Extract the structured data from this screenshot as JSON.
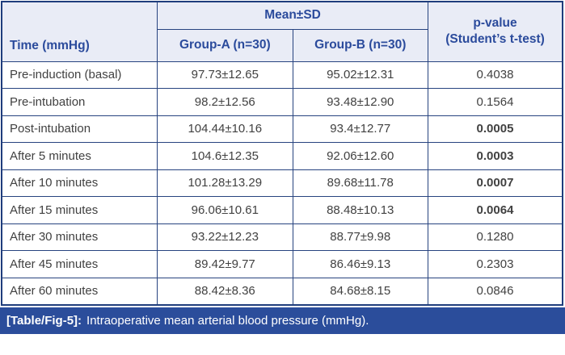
{
  "colors": {
    "table_border": "#1f3d7c",
    "header_bg": "#e9ecf6",
    "header_text": "#2b4b9c",
    "body_text": "#414141",
    "caption_bg": "#2b4d9b",
    "caption_text": "#ffffff"
  },
  "table": {
    "header": {
      "time": "Time (mmHg)",
      "mean_sd": "Mean±SD",
      "group_a": "Group-A (n=30)",
      "group_b": "Group-B (n=30)",
      "p_value": "p-value\n(Student’s t-test)"
    },
    "rows": [
      {
        "time": "Pre-induction (basal)",
        "group_a": "97.73±12.65",
        "group_b": "95.02±12.31",
        "p": "0.4038",
        "p_bold": false
      },
      {
        "time": "Pre-intubation",
        "group_a": "98.2±12.56",
        "group_b": "93.48±12.90",
        "p": "0.1564",
        "p_bold": false
      },
      {
        "time": "Post-intubation",
        "group_a": "104.44±10.16",
        "group_b": "93.4±12.77",
        "p": "0.0005",
        "p_bold": true
      },
      {
        "time": "After 5 minutes",
        "group_a": "104.6±12.35",
        "group_b": "92.06±12.60",
        "p": "0.0003",
        "p_bold": true
      },
      {
        "time": "After 10 minutes",
        "group_a": "101.28±13.29",
        "group_b": "89.68±11.78",
        "p": "0.0007",
        "p_bold": true
      },
      {
        "time": "After 15 minutes",
        "group_a": "96.06±10.61",
        "group_b": "88.48±10.13",
        "p": "0.0064",
        "p_bold": true
      },
      {
        "time": "After 30 minutes",
        "group_a": "93.22±12.23",
        "group_b": "88.77±9.98",
        "p": "0.1280",
        "p_bold": false
      },
      {
        "time": "After 45 minutes",
        "group_a": "89.42±9.77",
        "group_b": "86.46±9.13",
        "p": "0.2303",
        "p_bold": false
      },
      {
        "time": "After 60 minutes",
        "group_a": "88.42±8.36",
        "group_b": "84.68±8.15",
        "p": "0.0846",
        "p_bold": false
      }
    ]
  },
  "caption": {
    "label": "[Table/Fig-5]:",
    "text": "Intraoperative mean arterial blood pressure (mmHg)."
  }
}
